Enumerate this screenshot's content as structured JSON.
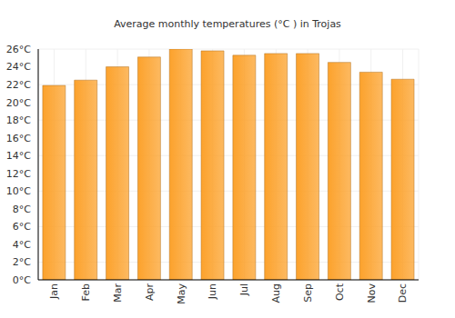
{
  "chart_data": {
    "type": "bar",
    "title": "Average monthly temperatures (°C ) in Trojas",
    "categories": [
      "Jan",
      "Feb",
      "Mar",
      "Apr",
      "May",
      "Jun",
      "Jul",
      "Aug",
      "Sep",
      "Oct",
      "Nov",
      "Dec"
    ],
    "values": [
      21.9,
      22.5,
      24.0,
      25.1,
      26.0,
      25.8,
      25.3,
      25.5,
      25.5,
      24.5,
      23.4,
      22.6
    ],
    "color": "#fca22c",
    "ylim": [
      0,
      26
    ],
    "yticks": [
      {
        "value": 0,
        "label": "0°C"
      },
      {
        "value": 2,
        "label": "2°C"
      },
      {
        "value": 4,
        "label": "4°C"
      },
      {
        "value": 6,
        "label": "6°C"
      },
      {
        "value": 8,
        "label": "8°C"
      },
      {
        "value": 10,
        "label": "10°C"
      },
      {
        "value": 12,
        "label": "12°C"
      },
      {
        "value": 14,
        "label": "14°C"
      },
      {
        "value": 16,
        "label": "16°C"
      },
      {
        "value": 18,
        "label": "18°C"
      },
      {
        "value": 20,
        "label": "20°C"
      },
      {
        "value": 22,
        "label": "22°C"
      },
      {
        "value": 24,
        "label": "24°C"
      },
      {
        "value": 26,
        "label": "26°C"
      }
    ],
    "grid": true
  }
}
